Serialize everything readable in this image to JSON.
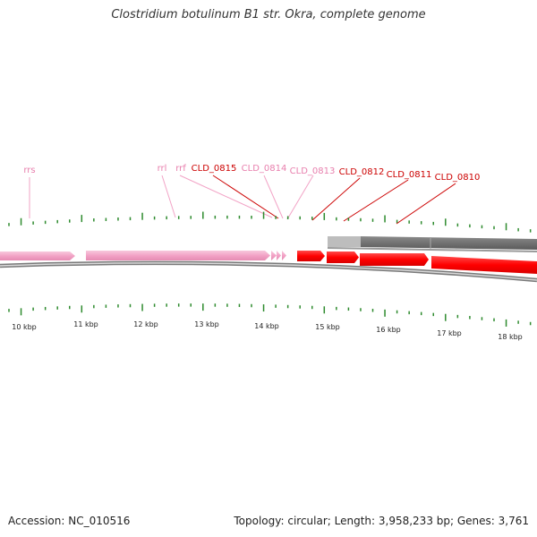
{
  "title": "Clostridium botulinum B1 str. Okra, complete genome",
  "accession": "Accession: NC_010516",
  "summary": "Topology: circular; Length: 3,958,233 bp; Genes: 3,761",
  "colors": {
    "rna_feature": "#f2a3c6",
    "rna_label": "#e87fad",
    "cds_feature": "#ff0000",
    "cds_label": "#cc0000",
    "tick": "#2e8b2e",
    "backbone": "#888888",
    "bar_light": "#bbbbbb",
    "bar_dark": "#6b6b6b"
  },
  "genes": [
    {
      "name": "rrs",
      "kind": "rna"
    },
    {
      "name": "rrl",
      "kind": "rna"
    },
    {
      "name": "rrf",
      "kind": "rna"
    },
    {
      "name": "CLD_0815",
      "kind": "cds"
    },
    {
      "name": "CLD_0814",
      "kind": "rna"
    },
    {
      "name": "CLD_0813",
      "kind": "rna"
    },
    {
      "name": "CLD_0812",
      "kind": "cds"
    },
    {
      "name": "CLD_0811",
      "kind": "cds"
    },
    {
      "name": "CLD_0810",
      "kind": "cds"
    }
  ],
  "axis_labels": [
    "10 kbp",
    "11 kbp",
    "12 kbp",
    "13 kbp",
    "14 kbp",
    "15 kbp",
    "16 kbp",
    "17 kbp",
    "18 kbp"
  ]
}
